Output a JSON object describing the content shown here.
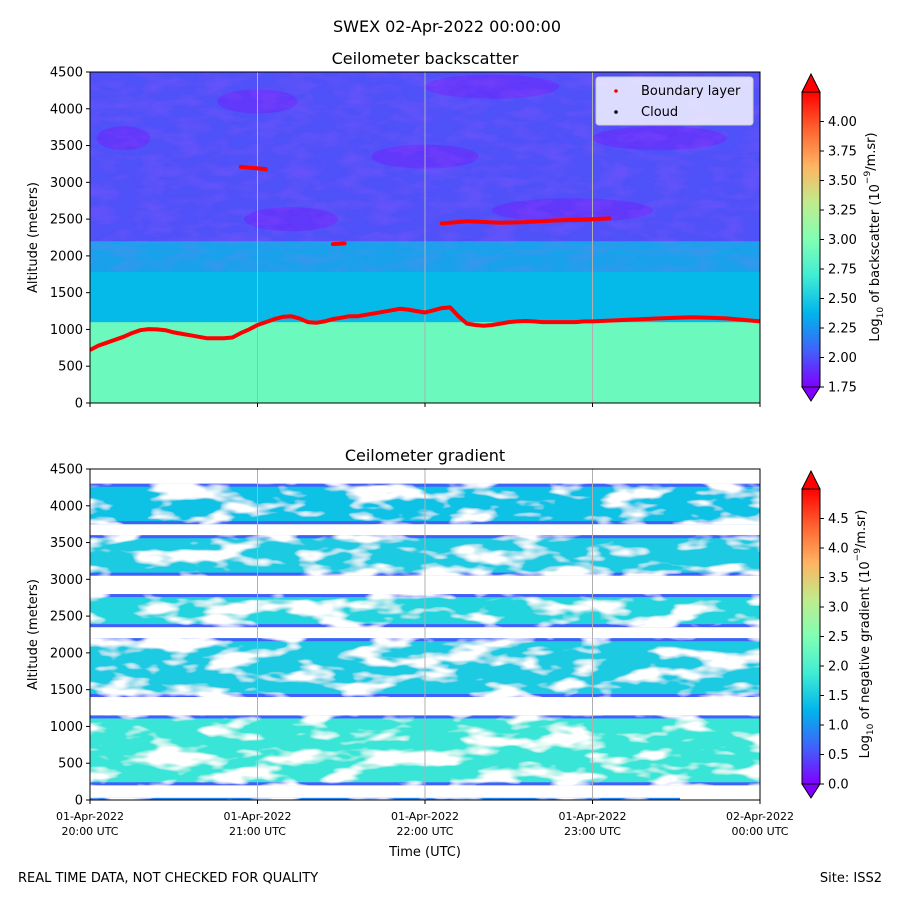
{
  "suptitle": "SWEX 02-Apr-2022 00:00:00",
  "footer": {
    "left_note": "REAL TIME DATA, NOT CHECKED FOR QUALITY",
    "site": "Site: ISS2"
  },
  "colors": {
    "rainbow": [
      "#8000ff",
      "#4062fa",
      "#00b5eb",
      "#40ecd4",
      "#80ffb4",
      "#c0eb8d",
      "#ffb462",
      "#ff6231",
      "#ff0000"
    ],
    "boundary_layer": "#ff0000",
    "cloud": "#000000",
    "grid": "#b0b0b0"
  },
  "chart_data": [
    {
      "type": "heatmap",
      "title": "Ceilometer backscatter",
      "xlabel": "Time (UTC)",
      "ylabel": "Altitude (meters)",
      "xlim": [
        20.0,
        24.0
      ],
      "ylim": [
        0,
        4500
      ],
      "x_ticks": [
        20,
        21,
        22,
        23,
        24
      ],
      "x_tick_labels": [
        [
          "01-Apr-2022",
          "20:00 UTC"
        ],
        [
          "01-Apr-2022",
          "21:00 UTC"
        ],
        [
          "01-Apr-2022",
          "22:00 UTC"
        ],
        [
          "01-Apr-2022",
          "23:00 UTC"
        ],
        [
          "02-Apr-2022",
          "00:00 UTC"
        ]
      ],
      "y_ticks": [
        0,
        500,
        1000,
        1500,
        2000,
        2500,
        3000,
        3500,
        4000,
        4500
      ],
      "grid": "x",
      "legend_position": "upper right",
      "legend": [
        "Boundary layer",
        "Cloud"
      ],
      "colorbar": {
        "label_prefix": "Log",
        "label_sub": "10",
        "label_rest": " of backscatter (10",
        "label_sup": "−9",
        "label_end": "/m.sr)",
        "range": [
          1.75,
          4.25
        ],
        "ticks": [
          "1.75",
          "2.00",
          "2.25",
          "2.50",
          "2.75",
          "3.00",
          "3.25",
          "3.50",
          "3.75",
          "4.00"
        ],
        "tick_values": [
          1.75,
          2.0,
          2.25,
          2.5,
          2.75,
          3.0,
          3.25,
          3.5,
          3.75,
          4.0
        ]
      },
      "field_description": {
        "near_surface_value": 2.9,
        "mid_altitude_value": 2.4,
        "upper_value": 2.0
      },
      "series": [
        {
          "name": "Boundary layer",
          "x": [
            20.0,
            20.05,
            20.1,
            20.15,
            20.2,
            20.25,
            20.3,
            20.35,
            20.4,
            20.45,
            20.5,
            20.55,
            20.6,
            20.65,
            20.7,
            20.75,
            20.8,
            20.85,
            20.9,
            20.95,
            21.0,
            21.05,
            21.1,
            21.15,
            21.2,
            21.25,
            21.3,
            21.35,
            21.4,
            21.45,
            21.5,
            21.55,
            21.6,
            21.65,
            21.7,
            21.75,
            21.8,
            21.85,
            21.9,
            21.95,
            22.0,
            22.05,
            22.1,
            22.15,
            22.2,
            22.25,
            22.3,
            22.35,
            22.4,
            22.45,
            22.5,
            22.55,
            22.6,
            22.65,
            22.7,
            22.75,
            22.8,
            22.85,
            22.9,
            22.95,
            23.0,
            23.1,
            23.2,
            23.3,
            23.4,
            23.5,
            23.6,
            23.7,
            23.8,
            23.9,
            24.0
          ],
          "y": [
            720,
            780,
            820,
            860,
            900,
            950,
            990,
            1005,
            1000,
            990,
            960,
            940,
            920,
            900,
            880,
            880,
            880,
            890,
            950,
            1000,
            1060,
            1100,
            1140,
            1170,
            1180,
            1150,
            1100,
            1090,
            1110,
            1140,
            1160,
            1180,
            1180,
            1200,
            1220,
            1240,
            1260,
            1280,
            1270,
            1250,
            1230,
            1260,
            1290,
            1300,
            1180,
            1080,
            1060,
            1050,
            1060,
            1080,
            1100,
            1110,
            1115,
            1110,
            1100,
            1100,
            1100,
            1100,
            1100,
            1110,
            1110,
            1120,
            1130,
            1140,
            1150,
            1160,
            1165,
            1160,
            1150,
            1130,
            1110
          ]
        },
        {
          "name": "Boundary layer (elevated)",
          "segments": [
            {
              "x": [
                20.9,
                21.05
              ],
              "y": [
                3210,
                3180
              ]
            },
            {
              "x": [
                21.45,
                21.52
              ],
              "y": [
                2160,
                2170
              ]
            },
            {
              "x": [
                22.1,
                22.25,
                22.45,
                22.6,
                22.75,
                22.9,
                23.0,
                23.1
              ],
              "y": [
                2440,
                2470,
                2450,
                2460,
                2480,
                2490,
                2500,
                2510
              ]
            }
          ]
        },
        {
          "name": "Cloud",
          "x": [],
          "y": []
        }
      ]
    },
    {
      "type": "heatmap",
      "title": "Ceilometer gradient",
      "xlabel": "Time (UTC)",
      "ylabel": "Altitude (meters)",
      "xlim": [
        20.0,
        24.0
      ],
      "ylim": [
        0,
        4500
      ],
      "x_ticks": [
        20,
        21,
        22,
        23,
        24
      ],
      "y_ticks": [
        0,
        500,
        1000,
        1500,
        2000,
        2500,
        3000,
        3500,
        4000,
        4500
      ],
      "grid": "x",
      "colorbar": {
        "label_prefix": "Log",
        "label_sub": "10",
        "label_rest": " of negative gradient (10",
        "label_sup": "−9",
        "label_end": "/m.sr)",
        "range": [
          0.0,
          5.0
        ],
        "ticks": [
          "0.0",
          "0.5",
          "1.0",
          "1.5",
          "2.0",
          "2.5",
          "3.0",
          "3.5",
          "4.0",
          "4.5"
        ],
        "tick_values": [
          0.0,
          0.5,
          1.0,
          1.5,
          2.0,
          2.5,
          3.0,
          3.5,
          4.0,
          4.5
        ]
      },
      "bands": [
        {
          "alt_low": 200,
          "alt_high": 1150,
          "value": 1.8
        },
        {
          "alt_low": 1400,
          "alt_high": 2200,
          "value": 1.5
        },
        {
          "alt_low": 2350,
          "alt_high": 2800,
          "value": 1.6
        },
        {
          "alt_low": 3050,
          "alt_high": 3600,
          "value": 1.5
        },
        {
          "alt_low": 3750,
          "alt_high": 4300,
          "value": 1.4
        }
      ]
    }
  ]
}
